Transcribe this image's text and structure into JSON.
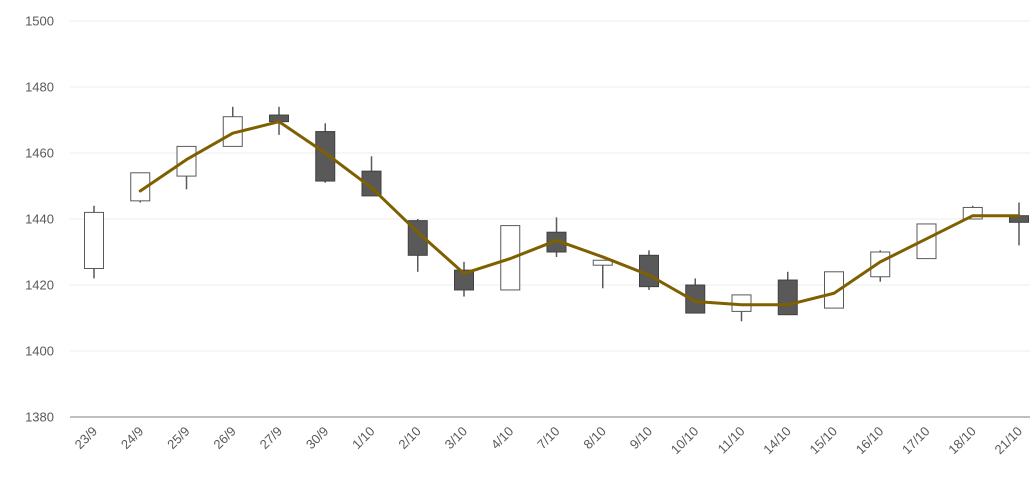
{
  "chart_data": {
    "type": "candlestick",
    "ylim": [
      1380,
      1500
    ],
    "yticks": [
      1380,
      1400,
      1420,
      1440,
      1460,
      1480,
      1500
    ],
    "grid": true,
    "categories": [
      "23/9",
      "24/9",
      "25/9",
      "26/9",
      "27/9",
      "30/9",
      "1/10",
      "2/10",
      "3/10",
      "4/10",
      "7/10",
      "8/10",
      "9/10",
      "10/10",
      "11/10",
      "14/10",
      "15/10",
      "16/10",
      "17/10",
      "18/10",
      "21/10"
    ],
    "ohlc": [
      {
        "open": 1425,
        "high": 1444,
        "low": 1422,
        "close": 1442
      },
      {
        "open": 1445.5,
        "high": 1454,
        "low": 1445,
        "close": 1454
      },
      {
        "open": 1453,
        "high": 1462,
        "low": 1449,
        "close": 1462
      },
      {
        "open": 1462,
        "high": 1474,
        "low": 1462,
        "close": 1471
      },
      {
        "open": 1471.5,
        "high": 1474,
        "low": 1465.5,
        "close": 1469.5
      },
      {
        "open": 1466.5,
        "high": 1469,
        "low": 1451,
        "close": 1451.5
      },
      {
        "open": 1454.5,
        "high": 1459,
        "low": 1447,
        "close": 1447
      },
      {
        "open": 1439.5,
        "high": 1440,
        "low": 1424,
        "close": 1429
      },
      {
        "open": 1424.5,
        "high": 1427,
        "low": 1416.5,
        "close": 1418.5
      },
      {
        "open": 1418.5,
        "high": 1438,
        "low": 1418.5,
        "close": 1438
      },
      {
        "open": 1436,
        "high": 1440.5,
        "low": 1428.5,
        "close": 1430
      },
      {
        "open": 1426,
        "high": 1427.5,
        "low": 1419,
        "close": 1427.5
      },
      {
        "open": 1429,
        "high": 1430.5,
        "low": 1418.5,
        "close": 1419.5
      },
      {
        "open": 1420,
        "high": 1422,
        "low": 1411.5,
        "close": 1411.5
      },
      {
        "open": 1412,
        "high": 1417,
        "low": 1409,
        "close": 1417
      },
      {
        "open": 1421.5,
        "high": 1424,
        "low": 1411,
        "close": 1411
      },
      {
        "open": 1413,
        "high": 1424,
        "low": 1413,
        "close": 1424
      },
      {
        "open": 1422.5,
        "high": 1430.5,
        "low": 1421,
        "close": 1430
      },
      {
        "open": 1428,
        "high": 1438.5,
        "low": 1428,
        "close": 1438.5
      },
      {
        "open": 1440,
        "high": 1444,
        "low": 1440,
        "close": 1443.5
      },
      {
        "open": 1441,
        "high": 1445,
        "low": 1432,
        "close": 1439
      }
    ],
    "trend_line": [
      null,
      1448.5,
      1458,
      1466,
      1469.5,
      1460,
      1449.5,
      1436,
      1423.5,
      1428,
      1433.5,
      1428.5,
      1423,
      1415,
      1414,
      1414,
      1417.5,
      1427,
      1434,
      1441,
      1441
    ],
    "colors": {
      "up_fill": "#ffffff",
      "up_stroke": "#595959",
      "down_fill": "#595959",
      "down_stroke": "#404040",
      "wick": "#595959",
      "trend": "#7f6000",
      "grid": "#ececec",
      "axis": "#bfbfbf"
    }
  }
}
